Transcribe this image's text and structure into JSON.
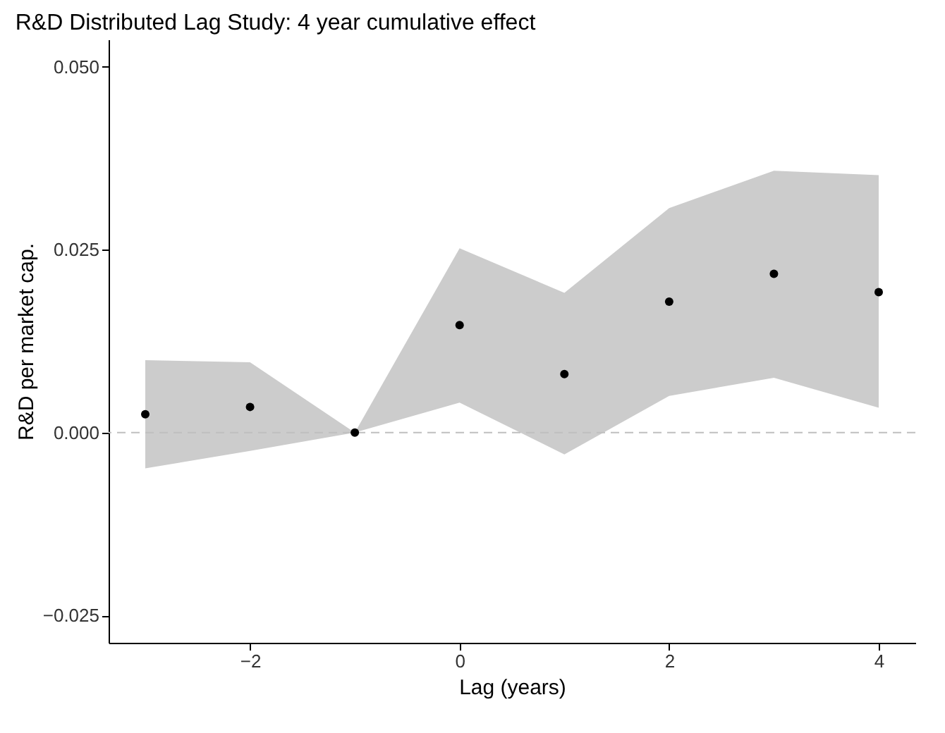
{
  "chart_data": {
    "type": "scatter",
    "title": "R&D Distributed Lag Study: 4 year cumulative effect",
    "xlabel": "Lag (years)",
    "ylabel": "R&D per market cap.",
    "x": [
      -3,
      -2,
      -1,
      0,
      1,
      2,
      3,
      4
    ],
    "series": [
      {
        "color": "#000000",
        "values": [
          0.0025,
          0.0035,
          0.0,
          0.0147,
          0.008,
          0.0179,
          0.0217,
          0.0192
        ],
        "lower": [
          -0.0049,
          -0.0025,
          0.0,
          0.0041,
          -0.003,
          0.005,
          0.0075,
          0.0034
        ],
        "upper": [
          0.0099,
          0.0096,
          0.0,
          0.0252,
          0.0191,
          0.0307,
          0.0358,
          0.0352
        ]
      }
    ],
    "xlim": [
      -3.35,
      4.35
    ],
    "xticks": [
      {
        "value": -2,
        "label": "−2"
      },
      0,
      2,
      4
    ],
    "ylim": [
      -0.02875,
      0.05375
    ],
    "yticks": [
      {
        "value": -0.025,
        "label": "−0.025"
      },
      {
        "value": 0,
        "label": "0.000"
      },
      {
        "value": 0.025,
        "label": "0.025"
      },
      {
        "value": 0.05,
        "label": "0.050"
      }
    ],
    "ref_lines": [
      {
        "axis": "y",
        "value": 0,
        "color": "#bfbfbf",
        "line_style": "dashed"
      }
    ],
    "marker": "circle",
    "grid": false
  }
}
